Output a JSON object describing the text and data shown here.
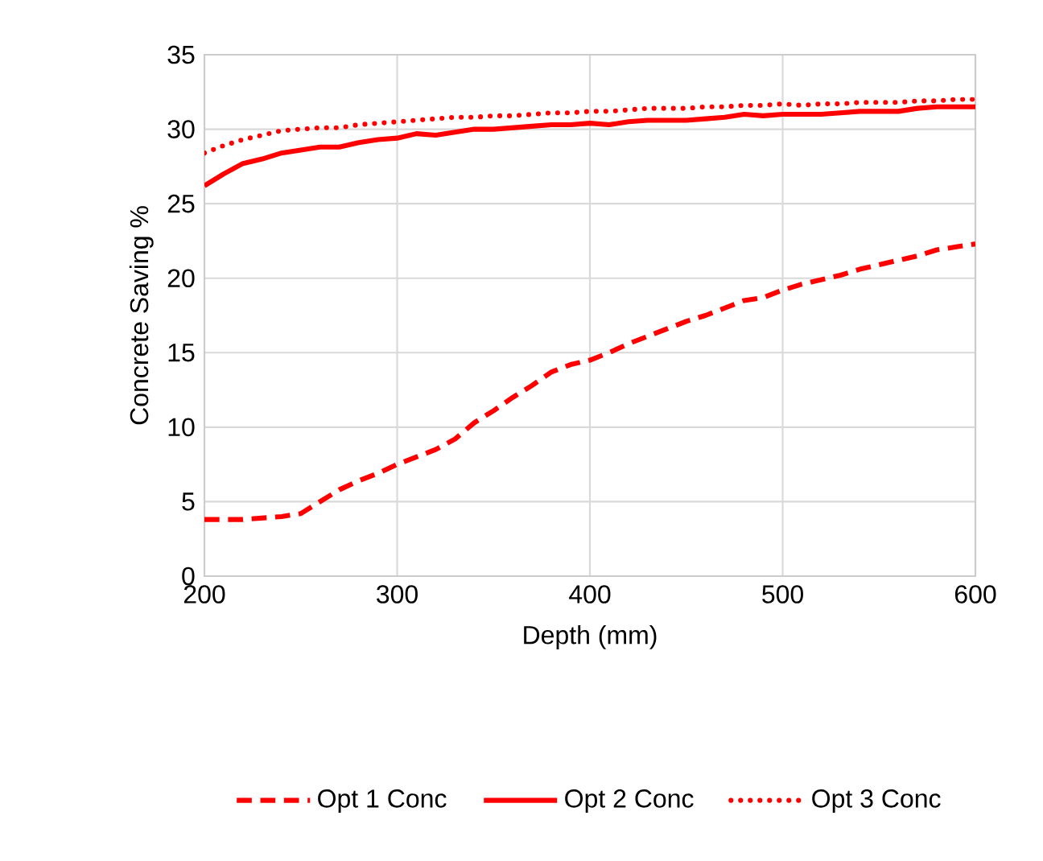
{
  "chart_data": {
    "type": "line",
    "xlabel": "Depth (mm)",
    "ylabel": "Concrete Saving %",
    "x": [
      200,
      210,
      220,
      230,
      240,
      250,
      260,
      270,
      280,
      290,
      300,
      310,
      320,
      330,
      340,
      350,
      360,
      370,
      380,
      390,
      400,
      410,
      420,
      430,
      440,
      450,
      460,
      470,
      480,
      490,
      500,
      510,
      520,
      530,
      540,
      550,
      560,
      570,
      580,
      590,
      600
    ],
    "xlim": [
      200,
      600
    ],
    "ylim": [
      0,
      35
    ],
    "xticks": [
      200,
      300,
      400,
      500,
      600
    ],
    "yticks": [
      0,
      5,
      10,
      15,
      20,
      25,
      30,
      35
    ],
    "grid": true,
    "legend": "bottom",
    "marker": "none",
    "series": [
      {
        "name": "Opt 1 Conc",
        "color": "#ff0000",
        "line_style": "dashed",
        "values": [
          3.8,
          3.8,
          3.8,
          3.9,
          4.0,
          4.2,
          5.0,
          5.8,
          6.4,
          6.9,
          7.5,
          8.0,
          8.5,
          9.2,
          10.3,
          11.1,
          12.0,
          12.8,
          13.7,
          14.2,
          14.5,
          15.0,
          15.6,
          16.1,
          16.6,
          17.1,
          17.5,
          18.0,
          18.5,
          18.7,
          19.2,
          19.6,
          19.9,
          20.2,
          20.6,
          20.9,
          21.2,
          21.5,
          21.9,
          22.1,
          22.3
        ]
      },
      {
        "name": "Opt 2 Conc",
        "color": "#ff0000",
        "line_style": "solid",
        "values": [
          26.2,
          27.0,
          27.7,
          28.0,
          28.4,
          28.6,
          28.8,
          28.8,
          29.1,
          29.3,
          29.4,
          29.7,
          29.6,
          29.8,
          30.0,
          30.0,
          30.1,
          30.2,
          30.3,
          30.3,
          30.4,
          30.3,
          30.5,
          30.6,
          30.6,
          30.6,
          30.7,
          30.8,
          31.0,
          30.9,
          31.0,
          31.0,
          31.0,
          31.1,
          31.2,
          31.2,
          31.2,
          31.4,
          31.5,
          31.5,
          31.5
        ]
      },
      {
        "name": "Opt 3 Conc",
        "color": "#ff0000",
        "line_style": "dotted",
        "values": [
          28.4,
          28.9,
          29.3,
          29.6,
          29.9,
          30.0,
          30.1,
          30.1,
          30.3,
          30.4,
          30.5,
          30.6,
          30.7,
          30.8,
          30.8,
          30.9,
          30.9,
          31.0,
          31.1,
          31.1,
          31.2,
          31.2,
          31.3,
          31.4,
          31.4,
          31.4,
          31.5,
          31.5,
          31.6,
          31.6,
          31.7,
          31.6,
          31.7,
          31.7,
          31.8,
          31.8,
          31.8,
          31.9,
          31.9,
          32.0,
          32.0
        ]
      }
    ]
  }
}
